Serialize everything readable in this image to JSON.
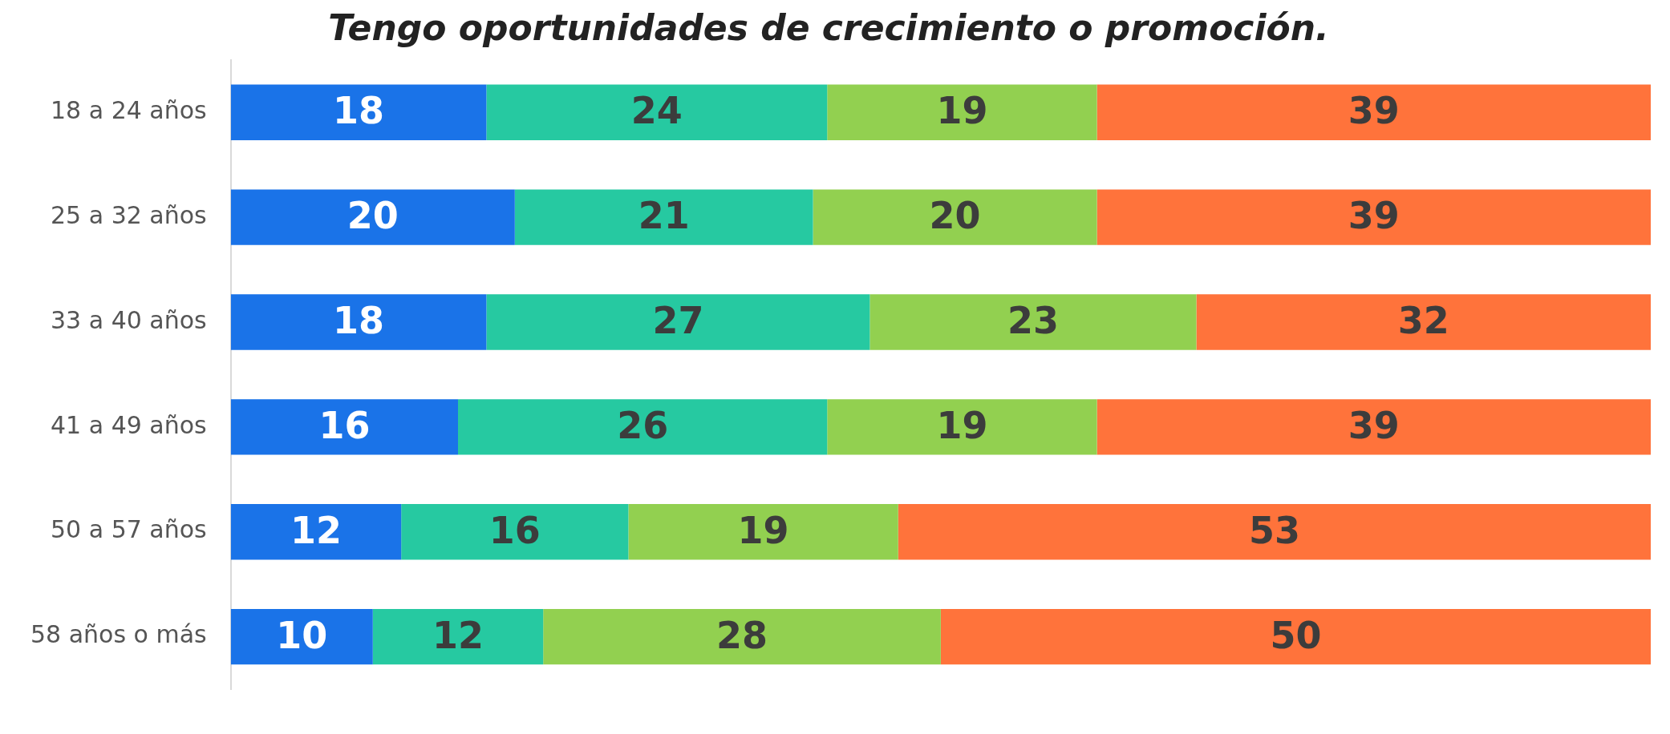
{
  "chart_data": {
    "type": "bar",
    "orientation": "horizontal",
    "stacked": true,
    "title": "Tengo oportunidades de crecimiento o promoción.",
    "categories": [
      "18 a 24 años",
      "25 a 32 años",
      "33 a 40 años",
      "41 a 49 años",
      "50 a 57 años",
      "58 años o más"
    ],
    "series": [
      {
        "color": "#1a73e8",
        "values": [
          18,
          20,
          18,
          16,
          12,
          10
        ]
      },
      {
        "color": "#26c9a1",
        "values": [
          24,
          21,
          27,
          26,
          16,
          12
        ]
      },
      {
        "color": "#92d050",
        "values": [
          19,
          20,
          23,
          19,
          19,
          28
        ]
      },
      {
        "color": "#ff733b",
        "values": [
          39,
          39,
          32,
          39,
          53,
          50
        ]
      }
    ],
    "xlim": [
      0,
      100
    ],
    "tick_labels": "y",
    "data_labels": true
  }
}
